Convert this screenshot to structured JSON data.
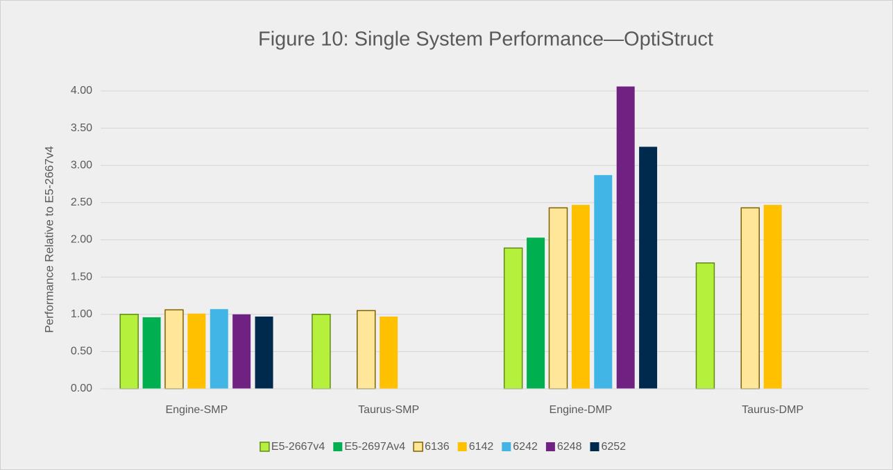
{
  "chart_data": {
    "type": "bar",
    "title": "Figure 10: Single System Performance—OptiStruct",
    "y_label": "Performance Relative to E5-2667v4",
    "categories": [
      "Engine-SMP",
      "Taurus-SMP",
      "Engine-DMP",
      "Taurus-DMP"
    ],
    "series": [
      {
        "name": "E5-2667v4",
        "color": "#b4f03c",
        "edgecolor": "#5f8a1a",
        "values": [
          1.0,
          1.0,
          1.89,
          1.69
        ]
      },
      {
        "name": "E5-2697Av4",
        "color": "#00b050",
        "values": [
          0.96,
          null,
          2.03,
          null
        ]
      },
      {
        "name": "6136",
        "color": "#ffe699",
        "edgecolor": "#7f6000",
        "values": [
          1.06,
          1.05,
          2.43,
          2.43
        ]
      },
      {
        "name": "6142",
        "color": "#ffc000",
        "values": [
          1.01,
          0.97,
          2.47,
          2.47
        ]
      },
      {
        "name": "6242",
        "color": "#41b6e6",
        "values": [
          1.07,
          null,
          2.87,
          null
        ]
      },
      {
        "name": "6248",
        "color": "#702283",
        "values": [
          1.0,
          null,
          4.06,
          null
        ]
      },
      {
        "name": "6252",
        "color": "#002a4d",
        "values": [
          0.97,
          null,
          3.25,
          null
        ]
      }
    ],
    "ylim": [
      0,
      4
    ],
    "yticks": [
      {
        "value": 0,
        "label": "0.00"
      },
      {
        "value": 0.5,
        "label": "0.50"
      },
      {
        "value": 1,
        "label": "1.00"
      },
      {
        "value": 1.5,
        "label": "1.50"
      },
      {
        "value": 2,
        "label": "2.00"
      },
      {
        "value": 2.5,
        "label": "2.50"
      },
      {
        "value": 3,
        "label": "3.00"
      },
      {
        "value": 3.5,
        "label": "3.50"
      },
      {
        "value": 4,
        "label": "4.00"
      }
    ],
    "grid": true,
    "legend": "bottom"
  }
}
